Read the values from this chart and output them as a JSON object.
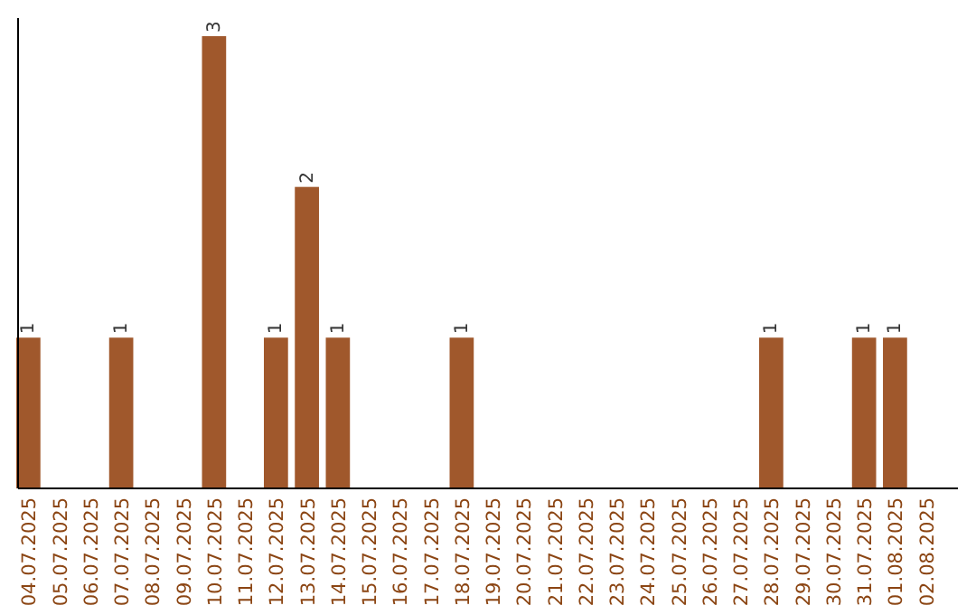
{
  "chart_data": {
    "type": "bar",
    "categories": [
      "04.07.2025",
      "05.07.2025",
      "06.07.2025",
      "07.07.2025",
      "08.07.2025",
      "09.07.2025",
      "10.07.2025",
      "11.07.2025",
      "12.07.2025",
      "13.07.2025",
      "14.07.2025",
      "15.07.2025",
      "16.07.2025",
      "17.07.2025",
      "18.07.2025",
      "19.07.2025",
      "20.07.2025",
      "21.07.2025",
      "22.07.2025",
      "23.07.2025",
      "24.07.2025",
      "25.07.2025",
      "26.07.2025",
      "27.07.2025",
      "28.07.2025",
      "29.07.2025",
      "30.07.2025",
      "31.07.2025",
      "01.08.2025",
      "02.08.2025"
    ],
    "values": [
      1,
      0,
      0,
      1,
      0,
      0,
      3,
      0,
      1,
      2,
      1,
      0,
      0,
      0,
      1,
      0,
      0,
      0,
      0,
      0,
      0,
      0,
      0,
      0,
      1,
      0,
      0,
      1,
      1,
      0
    ],
    "value_labels": [
      "1",
      null,
      null,
      "1",
      null,
      null,
      "3",
      null,
      "1",
      "2",
      "1",
      null,
      null,
      null,
      "1",
      null,
      null,
      null,
      null,
      null,
      null,
      null,
      null,
      null,
      "1",
      null,
      null,
      "1",
      "1",
      null
    ],
    "color": "#a0582c",
    "tick_labels": "x"
  }
}
